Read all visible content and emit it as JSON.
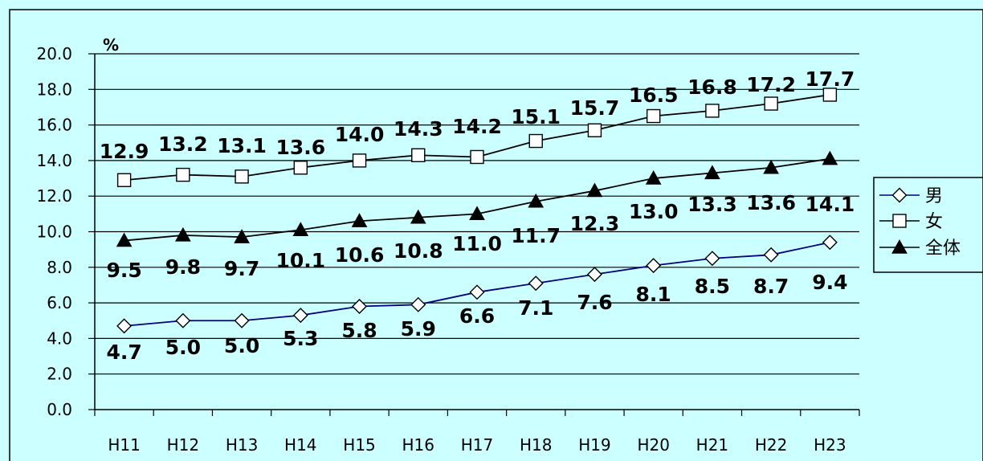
{
  "chart_data": {
    "type": "line",
    "unit_label": "%",
    "categories": [
      "H11",
      "H12",
      "H13",
      "H14",
      "H15",
      "H16",
      "H17",
      "H18",
      "H19",
      "H20",
      "H21",
      "H22",
      "H23"
    ],
    "ylim": [
      0,
      20
    ],
    "yticks": [
      "0.0",
      "2.0",
      "4.0",
      "6.0",
      "8.0",
      "10.0",
      "12.0",
      "14.0",
      "16.0",
      "18.0",
      "20.0"
    ],
    "grid": true,
    "legend_position": "right",
    "series": [
      {
        "name": "男",
        "marker": "diamond-open",
        "line_color": "#000080",
        "values": [
          4.7,
          5.0,
          5.0,
          5.3,
          5.8,
          5.9,
          6.6,
          7.1,
          7.6,
          8.1,
          8.5,
          8.7,
          9.4
        ],
        "labels": [
          "4.7",
          "5.0",
          "5.0",
          "5.3",
          "5.8",
          "5.9",
          "6.6",
          "7.1",
          "7.6",
          "8.1",
          "8.5",
          "8.7",
          "9.4"
        ]
      },
      {
        "name": "女",
        "marker": "square-open",
        "line_color": "#000000",
        "values": [
          12.9,
          13.2,
          13.1,
          13.6,
          14.0,
          14.3,
          14.2,
          15.1,
          15.7,
          16.5,
          16.8,
          17.2,
          17.7
        ],
        "labels": [
          "12.9",
          "13.2",
          "13.1",
          "13.6",
          "14.0",
          "14.3",
          "14.2",
          "15.1",
          "15.7",
          "16.5",
          "16.8",
          "17.2",
          "17.7"
        ]
      },
      {
        "name": "全体",
        "marker": "triangle-filled",
        "line_color": "#000000",
        "values": [
          9.5,
          9.8,
          9.7,
          10.1,
          10.6,
          10.8,
          11.0,
          11.7,
          12.3,
          13.0,
          13.3,
          13.6,
          14.1
        ],
        "labels": [
          "9.5",
          "9.8",
          "9.7",
          "10.1",
          "10.6",
          "10.8",
          "11.0",
          "11.7",
          "12.3",
          "13.0",
          "13.3",
          "13.6",
          "14.1"
        ]
      }
    ]
  }
}
